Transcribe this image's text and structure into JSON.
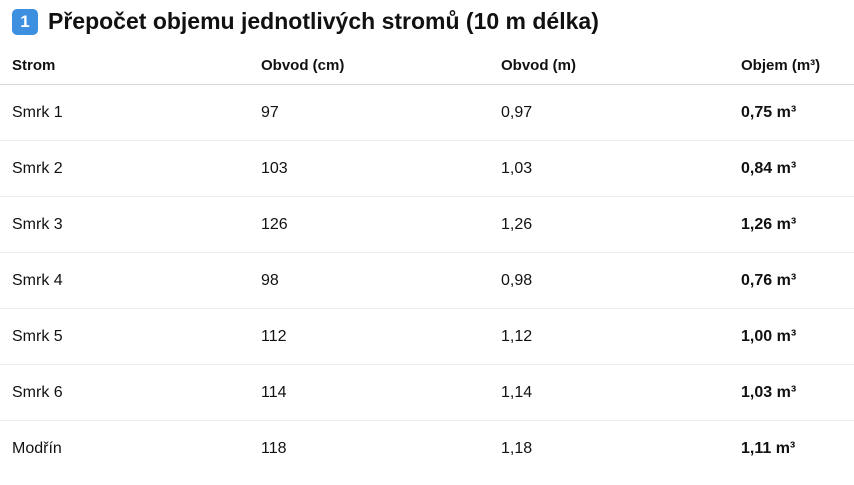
{
  "heading": {
    "icon": "1",
    "title": "Přepočet objemu jednotlivých stromů (10 m délka)"
  },
  "table": {
    "columns": [
      "Strom",
      "Obvod (cm)",
      "Obvod (m)",
      "Objem (m³)"
    ],
    "rows": [
      [
        "Smrk 1",
        "97",
        "0,97",
        "0,75 m³"
      ],
      [
        "Smrk 2",
        "103",
        "1,03",
        "0,84 m³"
      ],
      [
        "Smrk 3",
        "126",
        "1,26",
        "1,26 m³"
      ],
      [
        "Smrk 4",
        "98",
        "0,98",
        "0,76 m³"
      ],
      [
        "Smrk 5",
        "112",
        "1,12",
        "1,00 m³"
      ],
      [
        "Smrk 6",
        "114",
        "1,14",
        "1,03 m³"
      ],
      [
        "Modřín",
        "118",
        "1,18",
        "1,11 m³"
      ]
    ]
  }
}
